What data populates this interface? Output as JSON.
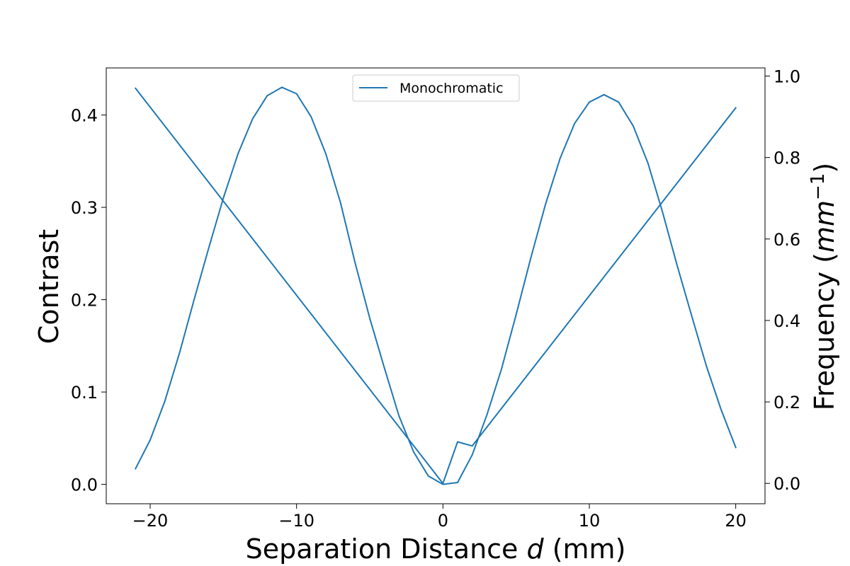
{
  "chart_data": {
    "type": "line",
    "xlabel": "Separation Distance $d$ (mm)",
    "ylabel": "Contrast",
    "y2label": "Frequency ($mm^{-1}$)",
    "xlim": [
      -23,
      22
    ],
    "ylim": [
      -0.021,
      0.451
    ],
    "y2lim": [
      -0.05,
      1.02
    ],
    "xticks": [
      -20,
      -10,
      0,
      10,
      20
    ],
    "xtick_labels": [
      "−20",
      "−10",
      "0",
      "10",
      "20"
    ],
    "yticks": [
      0.0,
      0.1,
      0.2,
      0.3,
      0.4
    ],
    "ytick_labels": [
      "0.0",
      "0.1",
      "0.2",
      "0.3",
      "0.4"
    ],
    "y2ticks": [
      0.0,
      0.2,
      0.4,
      0.6,
      0.8,
      1.0
    ],
    "y2tick_labels": [
      "0.0",
      "0.2",
      "0.4",
      "0.6",
      "0.8",
      "1.0"
    ],
    "legend": {
      "placement": "upper center",
      "entries": [
        "Monochromatic"
      ]
    },
    "grid": false,
    "color": "#1f77b4",
    "series": [
      {
        "name": "Monochromatic",
        "axis": "left",
        "x": [
          -21,
          -20,
          -19,
          -18,
          -17,
          -16,
          -15,
          -14,
          -13,
          -12,
          -11,
          -10,
          -9,
          -8,
          -7,
          -6,
          -5,
          -4,
          -3,
          -2,
          -1,
          0,
          1,
          2,
          3,
          4,
          5,
          6,
          7,
          8,
          9,
          10,
          11,
          12,
          13,
          14,
          15,
          16,
          17,
          18,
          19,
          20
        ],
        "y": [
          0.017,
          0.048,
          0.09,
          0.142,
          0.2,
          0.256,
          0.31,
          0.358,
          0.396,
          0.421,
          0.43,
          0.423,
          0.398,
          0.358,
          0.305,
          0.24,
          0.18,
          0.126,
          0.074,
          0.035,
          0.009,
          0.0,
          0.002,
          0.032,
          0.075,
          0.125,
          0.184,
          0.245,
          0.303,
          0.353,
          0.391,
          0.414,
          0.422,
          0.414,
          0.388,
          0.348,
          0.295,
          0.237,
          0.182,
          0.128,
          0.081,
          0.04
        ]
      },
      {
        "axis": "right",
        "x": [
          -21,
          0,
          1,
          2,
          20
        ],
        "y": [
          0.97,
          0.0,
          0.102,
          0.092,
          0.922
        ]
      }
    ]
  }
}
